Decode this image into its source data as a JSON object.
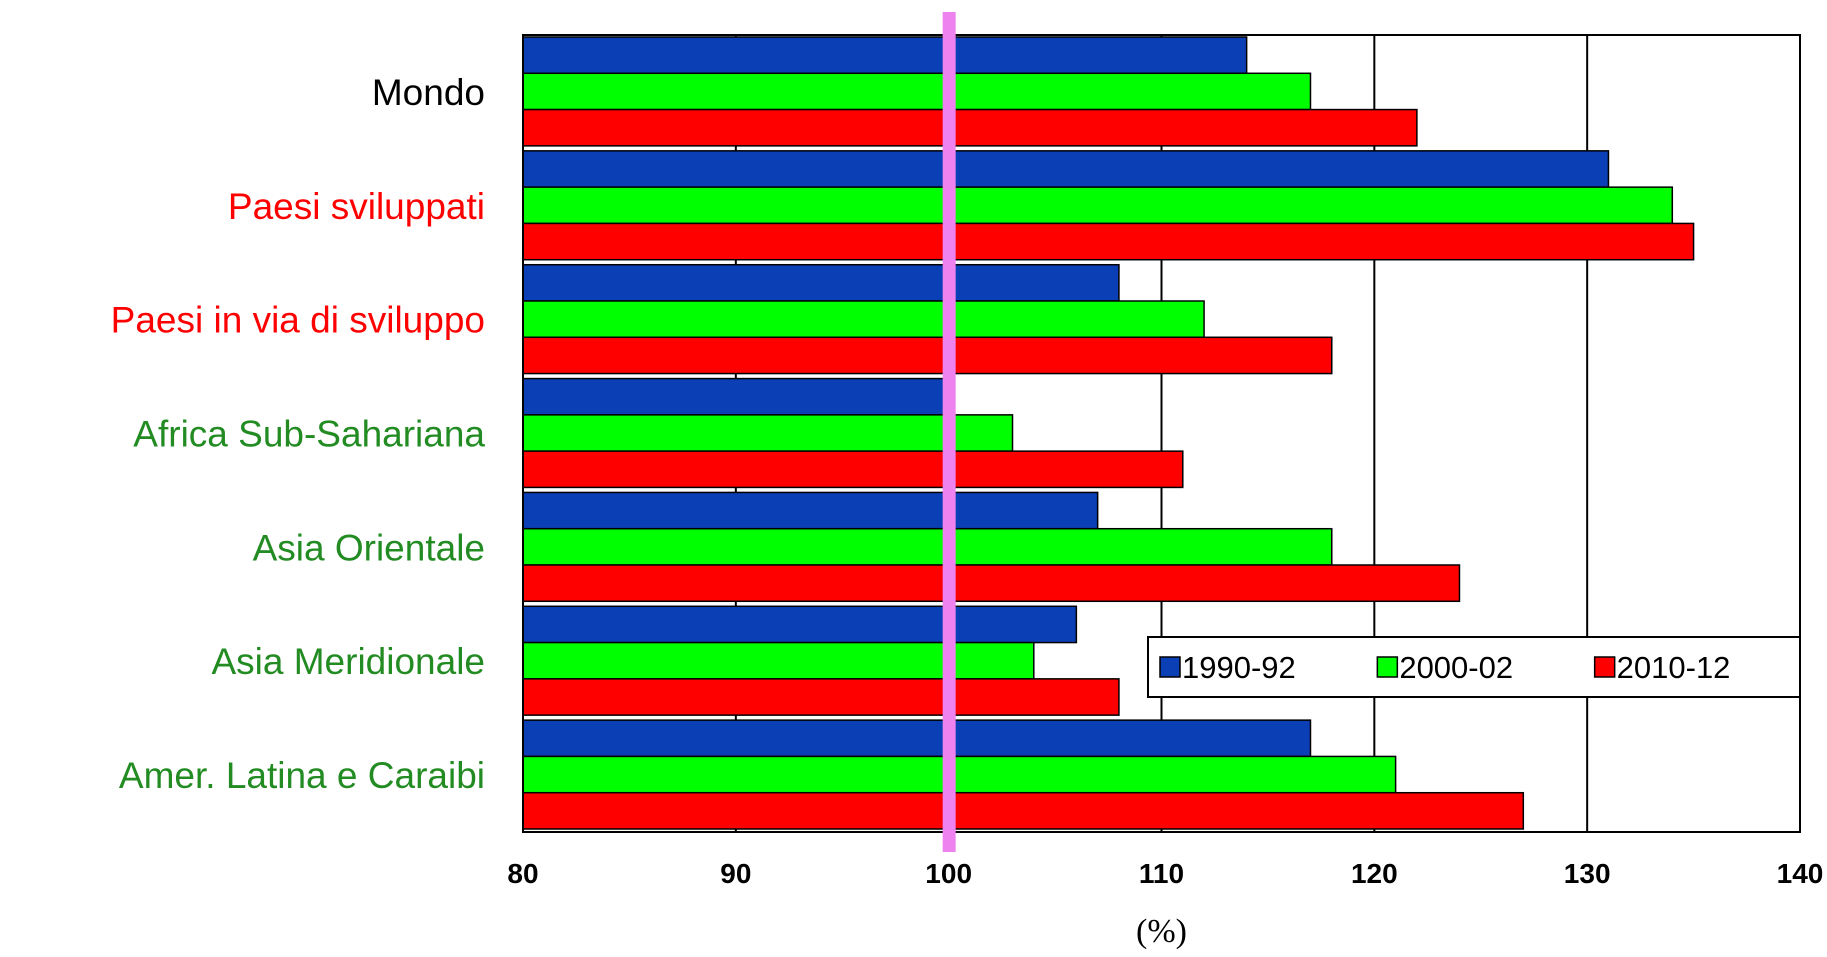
{
  "chart_data": {
    "type": "bar",
    "orientation": "horizontal",
    "categories": [
      "Mondo",
      "Paesi sviluppati",
      "Paesi in via di sviluppo",
      "Africa Sub-Sahariana",
      "Asia Orientale",
      "Asia Meridionale",
      "Amer. Latina e Caraibi"
    ],
    "category_colors": [
      "#000000",
      "#ff0000",
      "#ff0000",
      "#228b22",
      "#228b22",
      "#228b22",
      "#228b22"
    ],
    "series": [
      {
        "name": "1990-92",
        "color": "#0b3fb5",
        "values": [
          114,
          131,
          108,
          100,
          107,
          106,
          117
        ]
      },
      {
        "name": "2000-02",
        "color": "#00ff00",
        "values": [
          117,
          134,
          112,
          103,
          118,
          104,
          121
        ]
      },
      {
        "name": "2010-12",
        "color": "#ff0000",
        "values": [
          122,
          135,
          118,
          111,
          124,
          108,
          127
        ]
      }
    ],
    "xlim": [
      80,
      140
    ],
    "xticks": [
      "80",
      "90",
      "100",
      "110",
      "120",
      "130",
      "140"
    ],
    "xlabel": "(%)",
    "grid": "vertical",
    "reference_line": {
      "value": 100,
      "color": "#ee82ee"
    },
    "legend": {
      "placement": "lower-right",
      "orientation": "horizontal"
    }
  }
}
